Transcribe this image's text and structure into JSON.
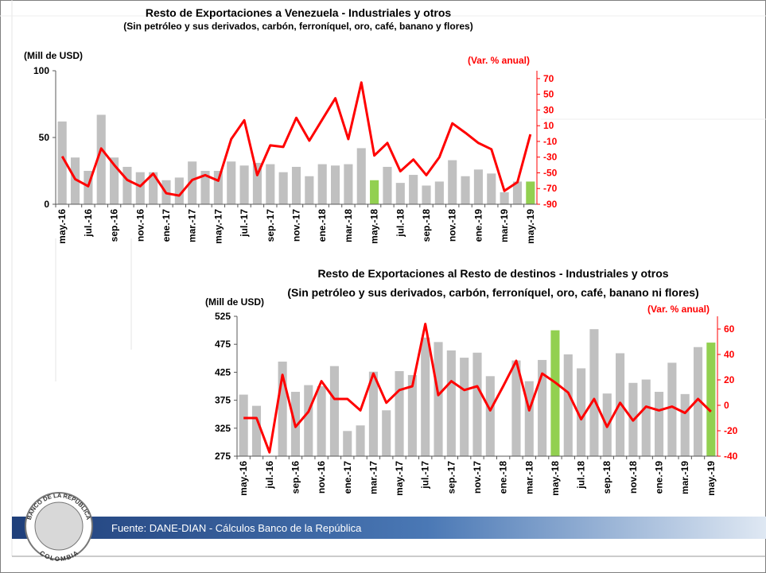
{
  "chart_data": [
    {
      "type": "bar_line",
      "title": "Resto de Exportaciones a Venezuela - Industriales y otros",
      "subtitle": "(Sin petróleo y sus derivados, carbón, ferroníquel, oro, café, banano y flores)",
      "y_label": "(Mill de USD)",
      "y2_label": "(Var. % anual)",
      "categories": [
        "may.-16",
        null,
        "jul.-16",
        null,
        "sep.-16",
        null,
        "nov.-16",
        null,
        "ene.-17",
        null,
        "mar.-17",
        null,
        "may.-17",
        null,
        "jul.-17",
        null,
        "sep.-17",
        null,
        "nov.-17",
        null,
        "ene.-18",
        null,
        "mar.-18",
        null,
        "may.-18",
        null,
        "jul.-18",
        null,
        "sep.-18",
        null,
        "nov.-18",
        null,
        "ene.-19",
        null,
        "mar.-19",
        null,
        "may.-19"
      ],
      "ylim": [
        0,
        100
      ],
      "yticks": [
        0,
        50,
        100
      ],
      "y2lim": [
        -90,
        80
      ],
      "y2ticks": [
        70,
        50,
        30,
        10,
        -10,
        -30,
        -50,
        -70,
        -90
      ],
      "series": [
        {
          "type": "bar",
          "colors": [
            "#c0c0c0",
            "#c0c0c0",
            "#c0c0c0",
            "#c0c0c0",
            "#c0c0c0",
            "#c0c0c0",
            "#c0c0c0",
            "#c0c0c0",
            "#c0c0c0",
            "#c0c0c0",
            "#c0c0c0",
            "#c0c0c0",
            "#c0c0c0",
            "#c0c0c0",
            "#c0c0c0",
            "#c0c0c0",
            "#c0c0c0",
            "#c0c0c0",
            "#c0c0c0",
            "#c0c0c0",
            "#c0c0c0",
            "#c0c0c0",
            "#c0c0c0",
            "#c0c0c0",
            "#92d050",
            "#c0c0c0",
            "#c0c0c0",
            "#c0c0c0",
            "#c0c0c0",
            "#c0c0c0",
            "#c0c0c0",
            "#c0c0c0",
            "#c0c0c0",
            "#c0c0c0",
            "#c0c0c0",
            "#c0c0c0",
            "#92d050"
          ],
          "values": [
            62,
            35,
            25,
            67,
            35,
            28,
            24,
            24,
            18,
            20,
            32,
            25,
            25,
            32,
            29,
            31,
            30,
            24,
            28,
            21,
            30,
            29,
            30,
            42,
            18,
            28,
            16,
            22,
            14,
            17,
            33,
            21,
            26,
            23,
            9,
            17,
            17
          ]
        },
        {
          "type": "line",
          "axis": "y2",
          "color": "#ff0000",
          "values": [
            -29,
            -58,
            -67,
            -19,
            -40,
            -59,
            -67,
            -51,
            -76,
            -79,
            -59,
            -53,
            -60,
            -7,
            17,
            -53,
            -15,
            -17,
            20,
            -9,
            18,
            45,
            -7,
            65,
            -28,
            -12,
            -48,
            -33,
            -53,
            -30,
            13,
            1,
            -12,
            -20,
            -73,
            -62,
            -1
          ]
        }
      ]
    },
    {
      "type": "bar_line",
      "title": "Resto de Exportaciones al Resto de destinos - Industriales y otros",
      "subtitle": "(Sin petróleo y sus derivados, carbón, ferroníquel, oro, café, banano ni flores)",
      "y_label": "(Mill de USD)",
      "y2_label": "(Var. % anual)",
      "categories": [
        "may.-16",
        null,
        "jul.-16",
        null,
        "sep.-16",
        null,
        "nov.-16",
        null,
        "ene.-17",
        null,
        "mar.-17",
        null,
        "may.-17",
        null,
        "jul.-17",
        null,
        "sep.-17",
        null,
        "nov.-17",
        null,
        "ene.-18",
        null,
        "mar.-18",
        null,
        "may.-18",
        null,
        "jul.-18",
        null,
        "sep.-18",
        null,
        "nov.-18",
        null,
        "ene.-19",
        null,
        "mar.-19",
        null,
        "may.-19"
      ],
      "ylim": [
        275,
        525
      ],
      "yticks": [
        275,
        325,
        375,
        425,
        475,
        525
      ],
      "y2lim": [
        -40,
        70
      ],
      "y2ticks": [
        60,
        40,
        20,
        0,
        -20,
        -40
      ],
      "series": [
        {
          "type": "bar",
          "colors": [
            "#c0c0c0",
            "#c0c0c0",
            "#c0c0c0",
            "#c0c0c0",
            "#c0c0c0",
            "#c0c0c0",
            "#c0c0c0",
            "#c0c0c0",
            "#c0c0c0",
            "#c0c0c0",
            "#c0c0c0",
            "#c0c0c0",
            "#c0c0c0",
            "#c0c0c0",
            "#c0c0c0",
            "#c0c0c0",
            "#c0c0c0",
            "#c0c0c0",
            "#c0c0c0",
            "#c0c0c0",
            "#c0c0c0",
            "#c0c0c0",
            "#c0c0c0",
            "#c0c0c0",
            "#92d050",
            "#c0c0c0",
            "#c0c0c0",
            "#c0c0c0",
            "#c0c0c0",
            "#c0c0c0",
            "#c0c0c0",
            "#c0c0c0",
            "#c0c0c0",
            "#c0c0c0",
            "#c0c0c0",
            "#c0c0c0",
            "#92d050"
          ],
          "values": [
            385,
            365,
            null,
            444,
            390,
            402,
            400,
            436,
            320,
            330,
            426,
            357,
            427,
            420,
            487,
            479,
            464,
            451,
            460,
            418,
            null,
            446,
            409,
            447,
            500,
            457,
            432,
            502,
            387,
            459,
            406,
            412,
            390,
            442,
            386,
            470,
            478
          ]
        },
        {
          "type": "line",
          "axis": "y2",
          "color": "#ff0000",
          "values": [
            -10,
            -10,
            -37,
            24,
            -17,
            -5,
            19,
            5,
            5,
            -4,
            25,
            2,
            12,
            15,
            64,
            8,
            19,
            12,
            15,
            -4,
            15,
            35,
            -4,
            25,
            18,
            10,
            -11,
            5,
            -17,
            2,
            -12,
            -1,
            -4,
            -1,
            -6,
            5,
            -5
          ]
        }
      ]
    }
  ],
  "footer": "Fuente: DANE-DIAN - Cálculos Banco de la República",
  "logo": {
    "top": "BANCO DE LA REPUBLICA",
    "bottom": "COLOMBIA"
  }
}
